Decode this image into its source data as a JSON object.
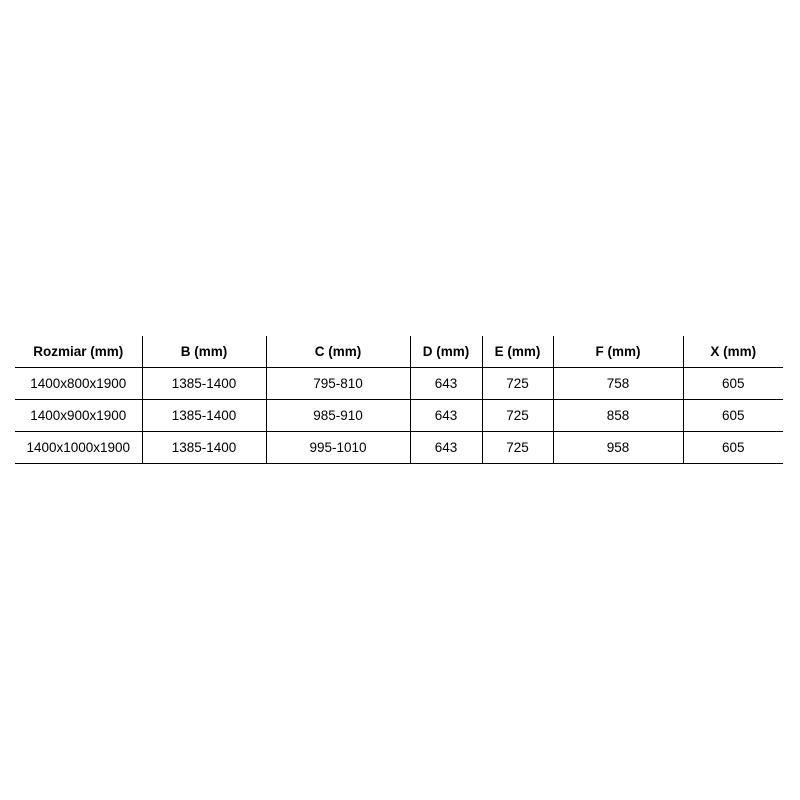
{
  "table": {
    "headers": [
      "Rozmiar (mm)",
      "B (mm)",
      "C (mm)",
      "D (mm)",
      "E (mm)",
      "F (mm)",
      "X (mm)"
    ],
    "rows": [
      [
        "1400x800x1900",
        "1385-1400",
        "795-810",
        "643",
        "725",
        "758",
        "605"
      ],
      [
        "1400x900x1900",
        "1385-1400",
        "985-910",
        "643",
        "725",
        "858",
        "605"
      ],
      [
        "1400x1000x1900",
        "1385-1400",
        "995-1010",
        "643",
        "725",
        "958",
        "605"
      ]
    ]
  }
}
